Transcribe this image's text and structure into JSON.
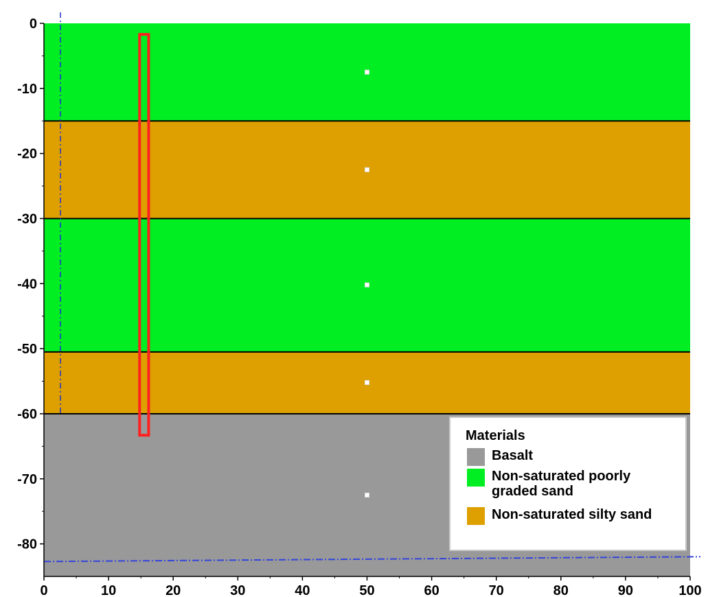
{
  "colors": {
    "green": "#00ee22",
    "orange": "#dda000",
    "gray": "#999999",
    "pile_outline": "#ff2020",
    "boundary_line": "#000000",
    "water_table": "#3344dd"
  },
  "model": {
    "x_range": [
      0,
      100
    ],
    "y_range": [
      -85,
      0
    ],
    "layers": [
      {
        "material": "Non-saturated poorly graded sand",
        "top": 0,
        "bottom": -15,
        "color": "#00ee22"
      },
      {
        "material": "Non-saturated silty sand",
        "top": -15,
        "bottom": -30,
        "color": "#dda000"
      },
      {
        "material": "Non-saturated poorly graded sand",
        "top": -30,
        "bottom": -50.5,
        "color": "#00ee22"
      },
      {
        "material": "Non-saturated silty sand",
        "top": -50.5,
        "bottom": -60,
        "color": "#dda000"
      },
      {
        "material": "Basalt",
        "top": -60,
        "bottom": -85,
        "color": "#999999"
      }
    ],
    "pile": {
      "x_left": 14.8,
      "x_right": 16.2,
      "top": -1.7,
      "bottom": -63.3
    },
    "water_table_depth": -82.5,
    "layer_markers": [
      {
        "x": 50,
        "y": -7.5
      },
      {
        "x": 50,
        "y": -22.5
      },
      {
        "x": 50,
        "y": -40.2
      },
      {
        "x": 50,
        "y": -55.2
      },
      {
        "x": 50,
        "y": -72.5
      }
    ]
  },
  "axes": {
    "x_ticks": [
      0,
      10,
      20,
      30,
      40,
      50,
      60,
      70,
      80,
      90,
      100
    ],
    "y_ticks": [
      0,
      -10,
      -20,
      -30,
      -40,
      -50,
      -60,
      -70,
      -80
    ],
    "x_tick_labels": [
      "0",
      "10",
      "20",
      "30",
      "40",
      "50",
      "60",
      "70",
      "80",
      "90",
      "100"
    ],
    "y_tick_labels": [
      "0",
      "-10",
      "-20",
      "-30",
      "-40",
      "-50",
      "-60",
      "-70",
      "-80"
    ]
  },
  "legend": {
    "title": "Materials",
    "items": [
      {
        "label": "Basalt",
        "color": "#999999"
      },
      {
        "label": "Non-saturated poorly graded sand",
        "color": "#00ee22"
      },
      {
        "label": "Non-saturated silty sand",
        "color": "#dda000"
      }
    ]
  }
}
